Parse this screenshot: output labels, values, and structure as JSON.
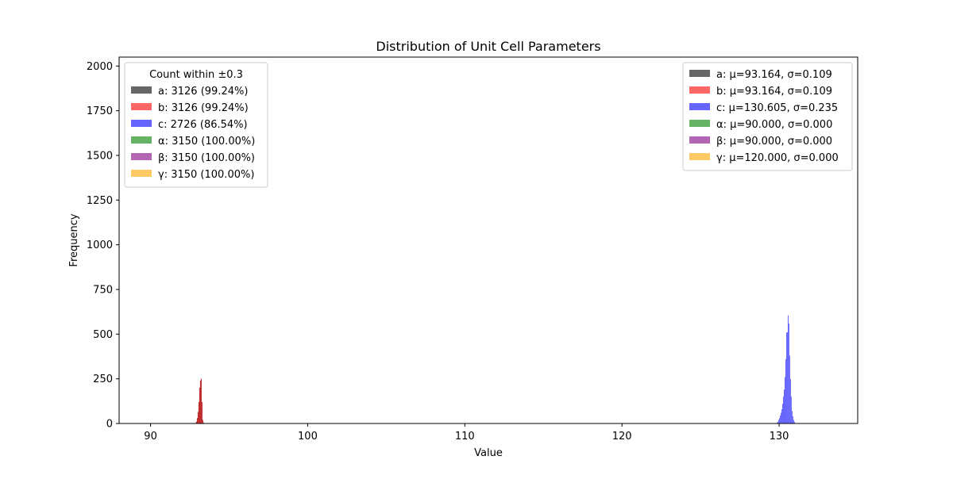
{
  "chart_data": {
    "type": "histogram",
    "title": "Distribution of Unit Cell Parameters",
    "xlabel": "Value",
    "ylabel": "Frequency",
    "xlim": [
      88,
      135
    ],
    "ylim": [
      0,
      2050
    ],
    "xticks": [
      90,
      100,
      110,
      120,
      130
    ],
    "yticks": [
      0,
      250,
      500,
      750,
      1000,
      1250,
      1500,
      1750,
      2000
    ],
    "grid": false,
    "series": [
      {
        "name": "a",
        "color": "#000000",
        "opacity": 0.6,
        "bin_width": 0.05,
        "bins": [
          [
            92.85,
            3
          ],
          [
            92.9,
            10
          ],
          [
            92.95,
            30
          ],
          [
            93.0,
            65
          ],
          [
            93.05,
            120
          ],
          [
            93.1,
            200
          ],
          [
            93.15,
            240
          ],
          [
            93.2,
            250
          ],
          [
            93.25,
            120
          ],
          [
            93.3,
            20
          ],
          [
            93.35,
            5
          ]
        ]
      },
      {
        "name": "b",
        "color": "#ff0000",
        "opacity": 0.6,
        "bin_width": 0.05,
        "bins": [
          [
            92.85,
            3
          ],
          [
            92.9,
            10
          ],
          [
            92.95,
            30
          ],
          [
            93.0,
            65
          ],
          [
            93.05,
            120
          ],
          [
            93.1,
            200
          ],
          [
            93.15,
            240
          ],
          [
            93.2,
            250
          ],
          [
            93.25,
            120
          ],
          [
            93.3,
            20
          ],
          [
            93.35,
            5
          ]
        ]
      },
      {
        "name": "c",
        "color": "#0000ff",
        "opacity": 0.6,
        "bin_width": 0.05,
        "bins": [
          [
            129.85,
            5
          ],
          [
            129.9,
            10
          ],
          [
            129.95,
            20
          ],
          [
            130.0,
            30
          ],
          [
            130.05,
            45
          ],
          [
            130.1,
            60
          ],
          [
            130.15,
            80
          ],
          [
            130.2,
            110
          ],
          [
            130.25,
            150
          ],
          [
            130.3,
            190
          ],
          [
            130.35,
            260
          ],
          [
            130.4,
            360
          ],
          [
            130.45,
            510
          ],
          [
            130.5,
            510
          ],
          [
            130.55,
            605
          ],
          [
            130.6,
            560
          ],
          [
            130.65,
            380
          ],
          [
            130.7,
            250
          ],
          [
            130.75,
            150
          ],
          [
            130.8,
            70
          ],
          [
            130.85,
            40
          ],
          [
            130.9,
            20
          ],
          [
            130.95,
            10
          ]
        ]
      },
      {
        "name": "α",
        "color": "#008000",
        "opacity": 0.6,
        "bin_width": 0.05,
        "bins": []
      },
      {
        "name": "β",
        "color": "#800080",
        "opacity": 0.6,
        "bin_width": 0.05,
        "bins": []
      },
      {
        "name": "γ",
        "color": "#ffa500",
        "opacity": 0.6,
        "bin_width": 0.05,
        "bins": []
      }
    ],
    "legend_left": {
      "placement": "upper-left",
      "title": "Count within ±0.3",
      "entries": [
        {
          "label": "a: 3126 (99.24%)",
          "color": "#000000"
        },
        {
          "label": "b: 3126 (99.24%)",
          "color": "#ff0000"
        },
        {
          "label": "c: 2726 (86.54%)",
          "color": "#0000ff"
        },
        {
          "label": "α: 3150 (100.00%)",
          "color": "#008000"
        },
        {
          "label": "β: 3150 (100.00%)",
          "color": "#800080"
        },
        {
          "label": "γ: 3150 (100.00%)",
          "color": "#ffa500"
        }
      ]
    },
    "legend_right": {
      "placement": "upper-right",
      "entries": [
        {
          "label": "a: μ=93.164, σ=0.109",
          "color": "#000000",
          "text_color": "#000000"
        },
        {
          "label": "b: μ=93.164, σ=0.109",
          "color": "#ff0000",
          "text_color": "#ff0000"
        },
        {
          "label": "c: μ=130.605, σ=0.235",
          "color": "#0000ff",
          "text_color": "#000000"
        },
        {
          "label": "α: μ=90.000, σ=0.000",
          "color": "#008000",
          "text_color": "#000000"
        },
        {
          "label": "β: μ=90.000, σ=0.000",
          "color": "#800080",
          "text_color": "#000000"
        },
        {
          "label": "γ: μ=120.000, σ=0.000",
          "color": "#ffa500",
          "text_color": "#000000"
        }
      ]
    }
  }
}
